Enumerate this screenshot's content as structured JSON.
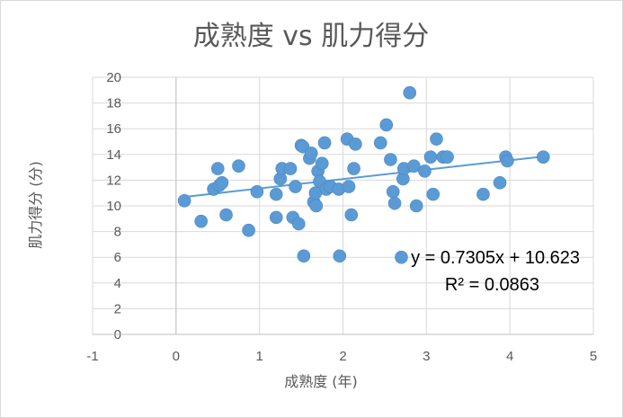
{
  "chart_data": {
    "type": "scatter",
    "title": "成熟度 vs 肌力得分",
    "xlabel": "成熟度 (年)",
    "ylabel": "肌力得分 (分)",
    "xlim": [
      -1,
      5
    ],
    "ylim": [
      0,
      20
    ],
    "xticks": [
      "-1",
      "0",
      "1",
      "2",
      "3",
      "4",
      "5"
    ],
    "yticks": [
      "0",
      "2",
      "4",
      "6",
      "8",
      "10",
      "12",
      "14",
      "16",
      "18",
      "20"
    ],
    "grid": true,
    "legend": "none",
    "marker_color": "#5b9bd5",
    "trendline": {
      "slope": 0.7305,
      "intercept": 10.623,
      "x_range": [
        0.05,
        4.4
      ],
      "color": "#5b9bd5",
      "equation": "y = 0.7305x + 10.623",
      "r_squared": "R² = 0.0863"
    },
    "points": [
      [
        0.1,
        10.4
      ],
      [
        0.3,
        8.8
      ],
      [
        0.45,
        11.3
      ],
      [
        0.5,
        12.9
      ],
      [
        0.52,
        11.6
      ],
      [
        0.55,
        11.8
      ],
      [
        0.6,
        9.3
      ],
      [
        0.75,
        13.1
      ],
      [
        0.87,
        8.1
      ],
      [
        0.97,
        11.1
      ],
      [
        1.2,
        10.9
      ],
      [
        1.2,
        9.1
      ],
      [
        1.25,
        12.1
      ],
      [
        1.27,
        12.9
      ],
      [
        1.37,
        12.9
      ],
      [
        1.4,
        9.1
      ],
      [
        1.43,
        11.5
      ],
      [
        1.47,
        8.6
      ],
      [
        1.5,
        14.7
      ],
      [
        1.52,
        14.6
      ],
      [
        1.53,
        6.1
      ],
      [
        1.6,
        13.7
      ],
      [
        1.62,
        14.1
      ],
      [
        1.65,
        10.3
      ],
      [
        1.67,
        11.0
      ],
      [
        1.68,
        10.0
      ],
      [
        1.7,
        12.7
      ],
      [
        1.72,
        11.9
      ],
      [
        1.75,
        13.3
      ],
      [
        1.78,
        14.9
      ],
      [
        1.8,
        11.3
      ],
      [
        1.85,
        11.5
      ],
      [
        1.95,
        11.3
      ],
      [
        1.96,
        6.1
      ],
      [
        2.05,
        15.2
      ],
      [
        2.07,
        11.5
      ],
      [
        2.1,
        9.3
      ],
      [
        2.13,
        12.9
      ],
      [
        2.15,
        14.8
      ],
      [
        2.45,
        14.9
      ],
      [
        2.52,
        16.3
      ],
      [
        2.57,
        13.6
      ],
      [
        2.6,
        11.1
      ],
      [
        2.62,
        10.2
      ],
      [
        2.7,
        6.0
      ],
      [
        2.72,
        12.1
      ],
      [
        2.73,
        12.9
      ],
      [
        2.8,
        18.8
      ],
      [
        2.85,
        13.1
      ],
      [
        2.88,
        10.0
      ],
      [
        2.98,
        12.7
      ],
      [
        3.05,
        13.8
      ],
      [
        3.08,
        10.9
      ],
      [
        3.12,
        15.2
      ],
      [
        3.2,
        13.8
      ],
      [
        3.25,
        13.8
      ],
      [
        3.68,
        10.9
      ],
      [
        3.88,
        11.8
      ],
      [
        3.95,
        13.8
      ],
      [
        3.97,
        13.5
      ],
      [
        4.4,
        13.8
      ]
    ]
  }
}
